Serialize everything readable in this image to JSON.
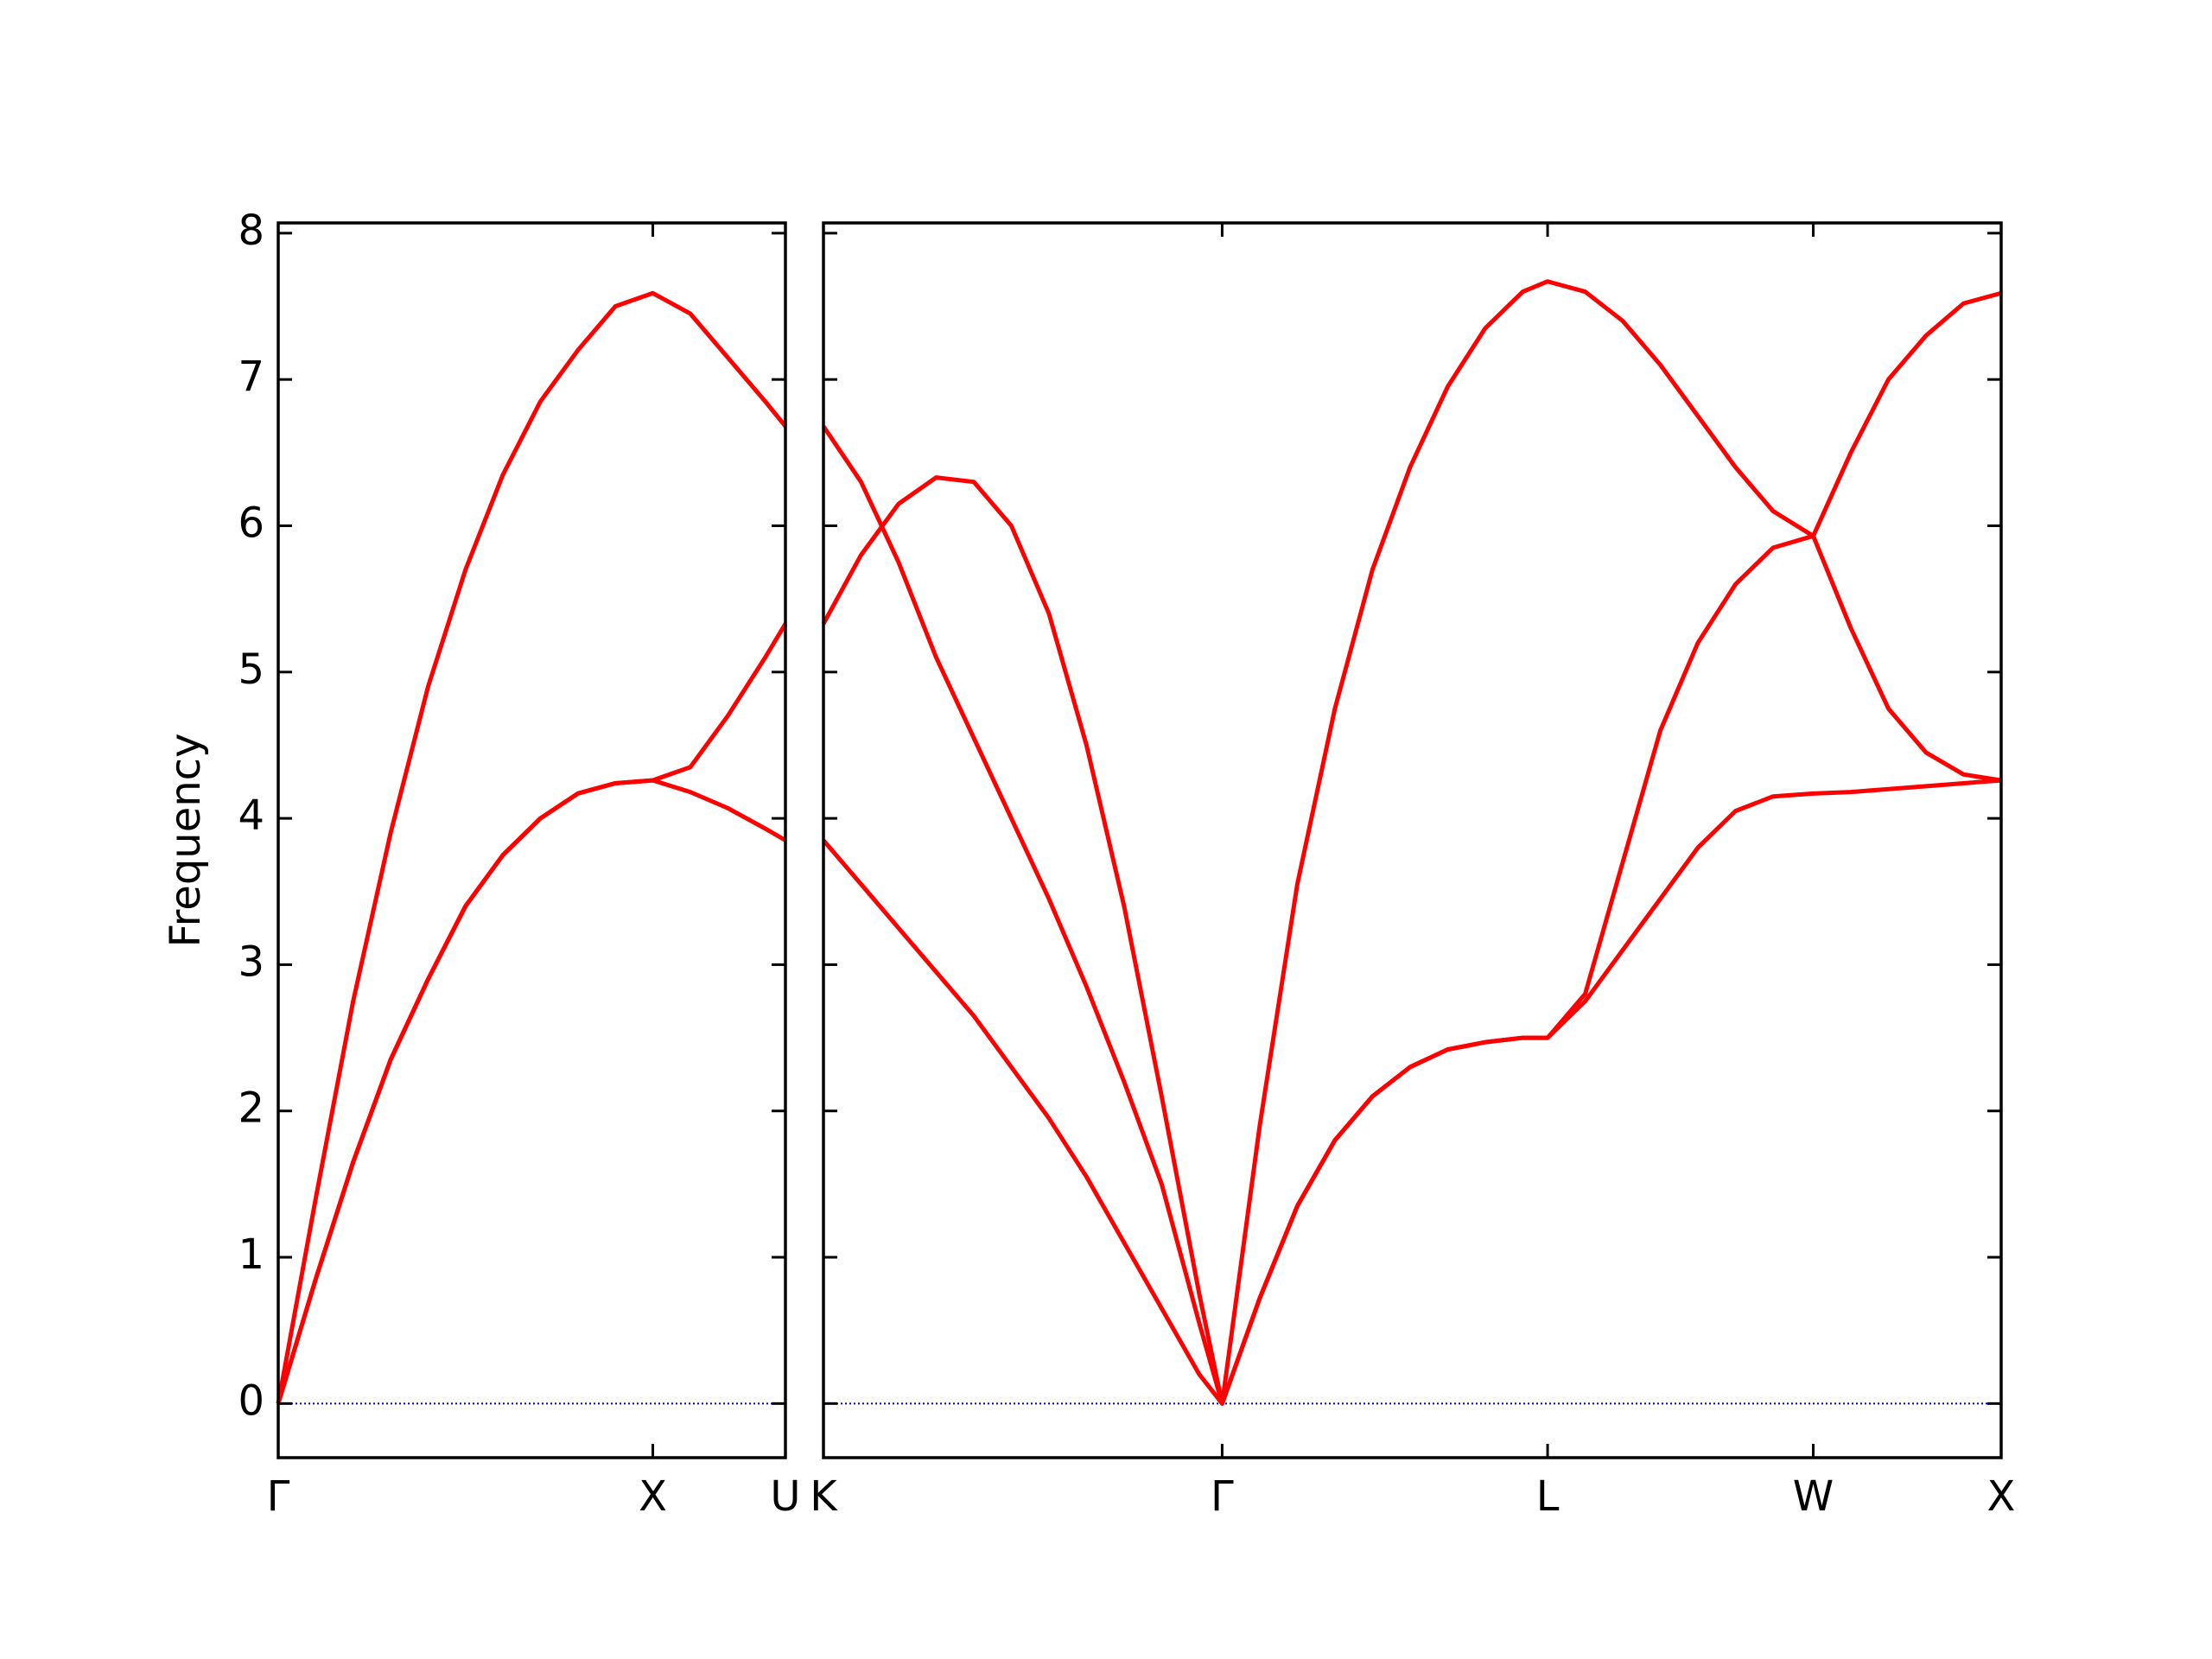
{
  "chart_data": [
    {
      "type": "line",
      "ylabel": "Frequency",
      "x": [
        0,
        0.1,
        0.2,
        0.3,
        0.4,
        0.5,
        0.6,
        0.7,
        0.8,
        0.9,
        1.0,
        1.1,
        1.2,
        1.3,
        1.354
      ],
      "xlim": [
        0,
        1.354
      ],
      "xticks": [
        {
          "value": 0,
          "label": "Γ"
        },
        {
          "value": 1,
          "label": "X"
        },
        {
          "value": 1.354,
          "label": "U"
        }
      ],
      "ylim": [
        -0.37,
        8.07
      ],
      "yticks": [
        0,
        1,
        2,
        3,
        4,
        5,
        6,
        7,
        8
      ],
      "zero_line": true,
      "zero_line_color": "#0000cc",
      "series": [
        {
          "color": "#ff0000",
          "values": [
            0,
            1.4,
            2.75,
            3.9,
            4.9,
            5.7,
            6.35,
            6.85,
            7.2,
            7.5,
            7.59,
            7.45,
            7.15,
            6.85,
            6.68
          ]
        },
        {
          "color": "#ff0000",
          "values": [
            0,
            0.85,
            1.65,
            2.35,
            2.9,
            3.4,
            3.75,
            4.0,
            4.17,
            4.24,
            4.26,
            4.35,
            4.7,
            5.1,
            5.33
          ]
        },
        {
          "color": "#ff0000",
          "values": [
            0,
            0.85,
            1.65,
            2.35,
            2.9,
            3.4,
            3.75,
            4.0,
            4.17,
            4.24,
            4.26,
            4.18,
            4.07,
            3.93,
            3.85
          ]
        }
      ]
    },
    {
      "type": "line",
      "x": [
        1.354,
        1.454,
        1.554,
        1.654,
        1.754,
        1.854,
        1.954,
        2.054,
        2.154,
        2.254,
        2.354,
        2.415,
        2.515,
        2.615,
        2.715,
        2.815,
        2.915,
        3.015,
        3.115,
        3.215,
        3.281,
        3.381,
        3.481,
        3.581,
        3.681,
        3.781,
        3.881,
        3.988,
        4.088,
        4.188,
        4.288,
        4.388,
        4.488
      ],
      "xlim": [
        1.354,
        4.488
      ],
      "xticks": [
        {
          "value": 1.354,
          "label": "K"
        },
        {
          "value": 2.415,
          "label": "Γ"
        },
        {
          "value": 3.281,
          "label": "L"
        },
        {
          "value": 3.988,
          "label": "W"
        },
        {
          "value": 4.488,
          "label": "X"
        }
      ],
      "ylim": [
        -0.37,
        8.07
      ],
      "zero_line": true,
      "zero_line_color": "#0000cc",
      "series": [
        {
          "color": "#ff0000",
          "values": [
            6.68,
            6.3,
            5.75,
            5.1,
            4.55,
            4.0,
            3.45,
            2.85,
            2.2,
            1.5,
            0.55,
            0,
            1.9,
            3.55,
            4.75,
            5.7,
            6.4,
            6.95,
            7.35,
            7.6,
            7.67,
            7.6,
            7.4,
            7.1,
            6.75,
            6.4,
            6.1,
            5.93,
            6.5,
            7.0,
            7.3,
            7.52,
            7.59
          ]
        },
        {
          "color": "#ff0000",
          "values": [
            5.33,
            5.8,
            6.15,
            6.33,
            6.3,
            6.0,
            5.4,
            4.5,
            3.4,
            2.1,
            0.75,
            0,
            0.72,
            1.35,
            1.8,
            2.1,
            2.3,
            2.42,
            2.47,
            2.5,
            2.5,
            2.8,
            3.7,
            4.6,
            5.2,
            5.6,
            5.85,
            5.93,
            5.3,
            4.75,
            4.45,
            4.3,
            4.26
          ]
        },
        {
          "color": "#ff0000",
          "values": [
            3.85,
            3.55,
            3.25,
            2.95,
            2.65,
            2.3,
            1.95,
            1.55,
            1.1,
            0.65,
            0.2,
            0,
            0.72,
            1.35,
            1.8,
            2.1,
            2.3,
            2.42,
            2.47,
            2.5,
            2.5,
            2.75,
            3.1,
            3.45,
            3.8,
            4.05,
            4.15,
            4.17,
            4.18,
            4.2,
            4.22,
            4.24,
            4.26
          ]
        }
      ]
    }
  ]
}
